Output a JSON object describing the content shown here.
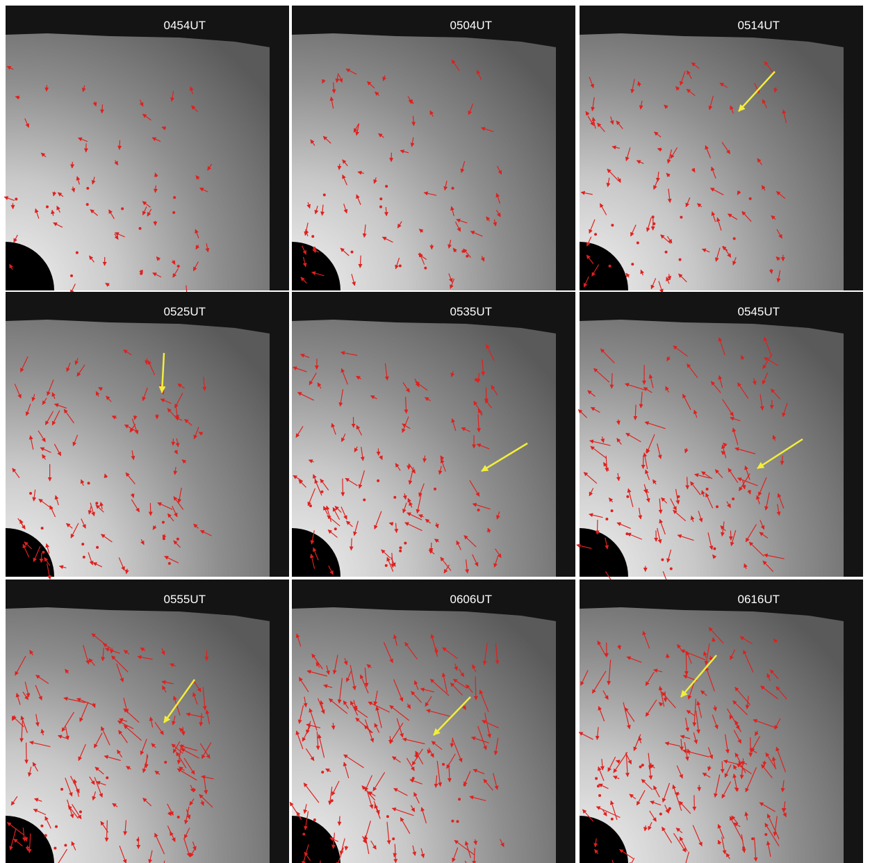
{
  "panels": [
    {
      "label": "0454UT"
    },
    {
      "label": "0504UT"
    },
    {
      "label": "0514UT"
    },
    {
      "label": "0525UT"
    },
    {
      "label": "0535UT"
    },
    {
      "label": "0545UT"
    },
    {
      "label": "0555UT"
    },
    {
      "label": "0606UT"
    },
    {
      "label": "0616UT"
    }
  ]
}
